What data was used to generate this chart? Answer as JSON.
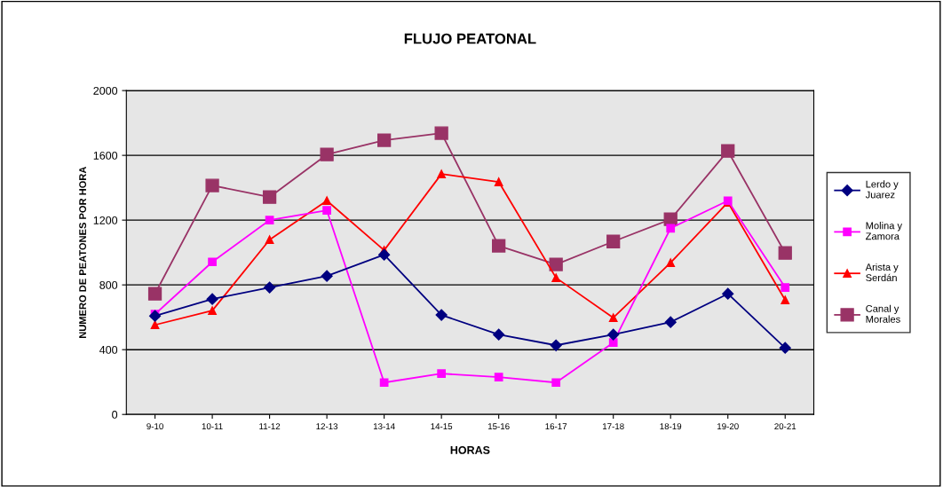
{
  "chart_data": {
    "type": "line",
    "title": "FLUJO PEATONAL",
    "xlabel": "HORAS",
    "ylabel": "NUMERO DE PEATONES POR HORA",
    "categories": [
      "9-10",
      "10-11",
      "11-12",
      "12-13",
      "13-14",
      "14-15",
      "15-16",
      "16-17",
      "17-18",
      "18-19",
      "19-20",
      "20-21"
    ],
    "ylim": [
      0,
      2000
    ],
    "yticks": [
      0,
      400,
      800,
      1200,
      1600,
      2000
    ],
    "grid": "y",
    "legend": "right",
    "series": [
      {
        "name": "Lerdo y\nJuarez",
        "color": "#000080",
        "marker": "diamond",
        "values": [
          608,
          712,
          784,
          855,
          986,
          614,
          493,
          427,
          493,
          570,
          745,
          411
        ]
      },
      {
        "name": "Molina y\nZamora",
        "color": "#ff00ff",
        "marker": "square",
        "values": [
          619,
          942,
          1200,
          1260,
          197,
          252,
          230,
          197,
          444,
          1150,
          1320,
          784
        ]
      },
      {
        "name": "Arista y\nSerdán",
        "color": "#ff0000",
        "marker": "triangle",
        "values": [
          553,
          641,
          1079,
          1320,
          1014,
          1485,
          1436,
          844,
          597,
          937,
          1310,
          707
        ]
      },
      {
        "name": "Canal y\nMorales",
        "color": "#993366",
        "marker": "square",
        "values": [
          745,
          1414,
          1342,
          1605,
          1693,
          1737,
          1041,
          926,
          1068,
          1205,
          1627,
          997
        ]
      }
    ]
  }
}
